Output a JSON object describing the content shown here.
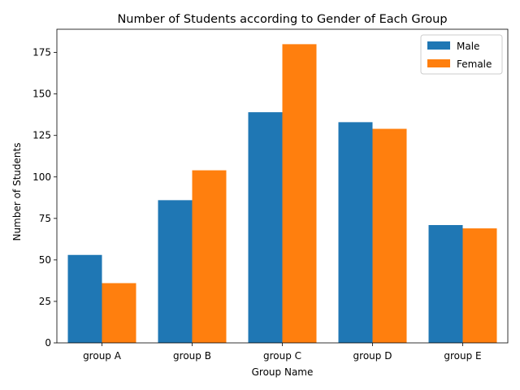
{
  "chart_data": {
    "type": "bar",
    "title": "Number of Students according to Gender of Each Group",
    "xlabel": "Group Name",
    "ylabel": "Number of Students",
    "categories": [
      "group A",
      "group B",
      "group C",
      "group D",
      "group E"
    ],
    "series": [
      {
        "name": "Male",
        "values": [
          53,
          86,
          139,
          133,
          71
        ],
        "color": "#1f77b4"
      },
      {
        "name": "Female",
        "values": [
          36,
          104,
          180,
          129,
          69
        ],
        "color": "#ff7f0e"
      }
    ],
    "ylim": [
      0,
      189
    ],
    "yticks": [
      0,
      25,
      50,
      75,
      100,
      125,
      150,
      175
    ],
    "grid": false,
    "legend_position": "top-right"
  }
}
